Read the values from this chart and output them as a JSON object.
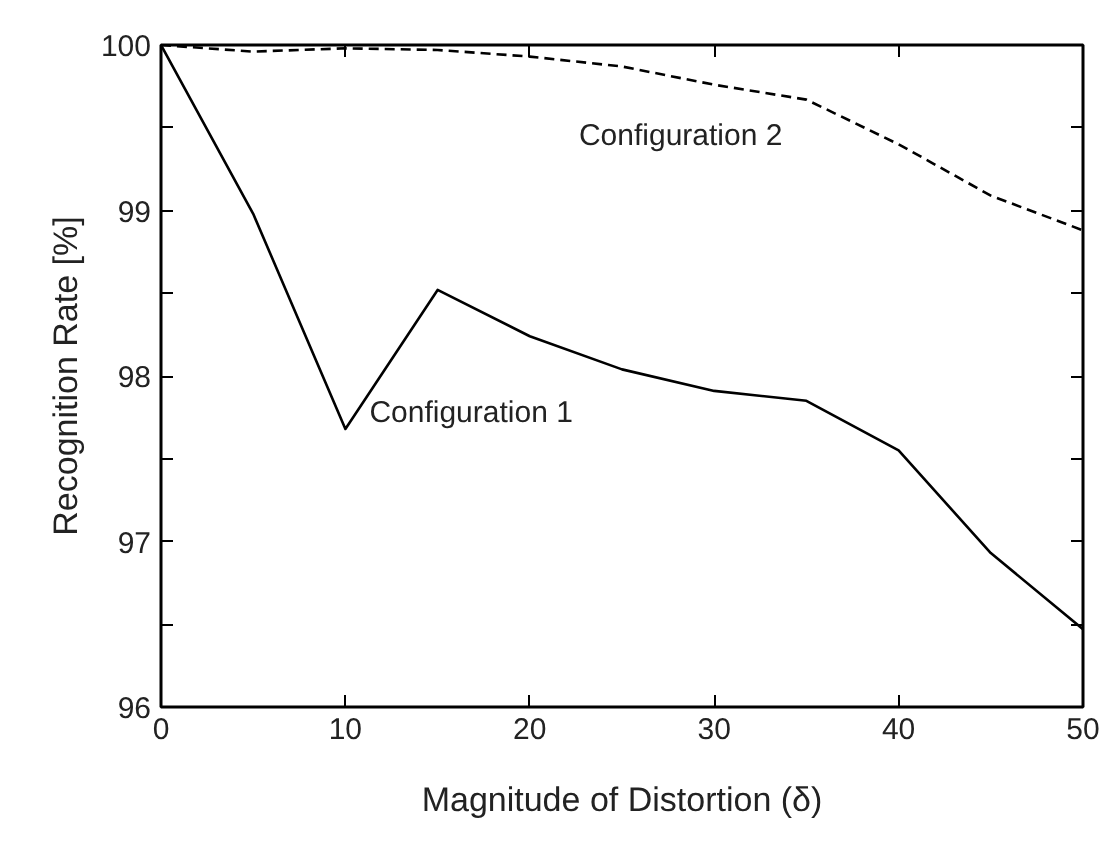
{
  "chart_data": {
    "type": "line",
    "xlabel": "Magnitude of Distortion (δ)",
    "ylabel": "Recognition Rate [%]",
    "x": [
      0,
      5,
      10,
      15,
      20,
      25,
      30,
      35,
      40,
      45,
      50
    ],
    "series": [
      {
        "name": "Configuration 1",
        "color": "#000000",
        "line_style": "solid",
        "values": [
          100,
          98.98,
          97.68,
          98.52,
          98.24,
          98.04,
          97.91,
          97.85,
          97.55,
          96.93,
          96.47
        ]
      },
      {
        "name": "Configuration 2",
        "color": "#000000",
        "line_style": "dashed",
        "values": [
          100,
          99.96,
          99.98,
          99.97,
          99.93,
          99.87,
          99.76,
          99.67,
          99.4,
          99.09,
          98.88
        ]
      }
    ],
    "xlim": [
      0,
      50
    ],
    "ylim": [
      96,
      100
    ],
    "xticks": [
      0,
      10,
      20,
      30,
      40,
      50
    ],
    "yticks": [
      96,
      {
        "value": 96.5,
        "label": null
      },
      97,
      {
        "value": 97.5,
        "label": null
      },
      98,
      {
        "value": 98.5,
        "label": null
      },
      99,
      {
        "value": 99.5,
        "label": null
      },
      100
    ],
    "grid": false,
    "marker": "none"
  }
}
